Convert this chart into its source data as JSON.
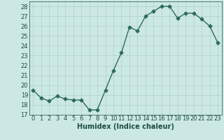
{
  "x": [
    0,
    1,
    2,
    3,
    4,
    5,
    6,
    7,
    8,
    9,
    10,
    11,
    12,
    13,
    14,
    15,
    16,
    17,
    18,
    19,
    20,
    21,
    22,
    23
  ],
  "y": [
    19.5,
    18.7,
    18.4,
    18.9,
    18.6,
    18.5,
    18.5,
    17.5,
    17.5,
    19.5,
    21.5,
    23.3,
    25.9,
    25.5,
    27.0,
    27.5,
    28.0,
    28.0,
    26.8,
    27.3,
    27.3,
    26.7,
    26.0,
    24.3
  ],
  "line_color": "#2e6b5e",
  "marker": "D",
  "markersize": 2.5,
  "bg_color": "#cce8e4",
  "grid_color": "#aecfcb",
  "xlabel": "Humidex (Indice chaleur)",
  "xlim": [
    -0.5,
    23.5
  ],
  "ylim": [
    17,
    28.5
  ],
  "yticks": [
    17,
    18,
    19,
    20,
    21,
    22,
    23,
    24,
    25,
    26,
    27,
    28
  ],
  "xticks": [
    0,
    1,
    2,
    3,
    4,
    5,
    6,
    7,
    8,
    9,
    10,
    11,
    12,
    13,
    14,
    15,
    16,
    17,
    18,
    19,
    20,
    21,
    22,
    23
  ],
  "xlabel_fontsize": 7,
  "tick_fontsize": 6,
  "tick_color": "#1a4d43",
  "label_color": "#1a4d43",
  "linewidth": 1.0
}
